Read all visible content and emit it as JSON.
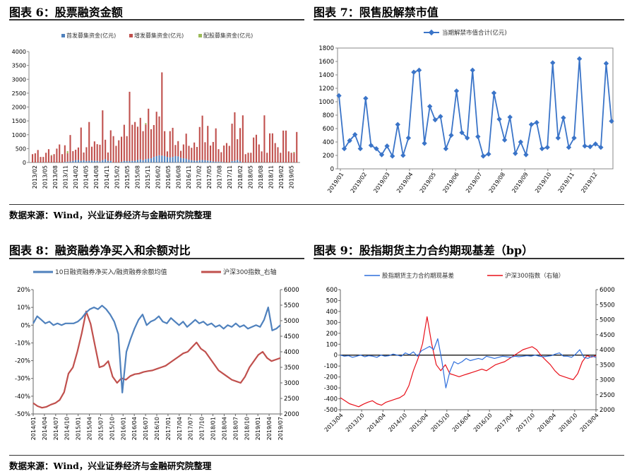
{
  "titles": {
    "fig6": "图表 6：股票融资金额",
    "fig7": "图表 7：限售股解禁市值",
    "fig8": "图表 8：融资融券净买入和余额对比",
    "fig9": "图表 9：股指期货主力合约期现基差（bp）"
  },
  "sources": {
    "top": "数据来源：Wind，兴业证券经济与金融研究院整理",
    "bottom": "数据来源：Wind，兴业证券经济与金融研究院整理"
  },
  "colors": {
    "blue": "#4f81bd",
    "red": "#c0504d",
    "green": "#9bbb59",
    "marker": "#3a74c8",
    "blue9": "#2f6fdc",
    "red9": "#e8101a"
  },
  "chart_data": [
    {
      "id": "fig6",
      "type": "bar",
      "stacked": true,
      "legend_position": "top",
      "ylim": [
        0,
        4000
      ],
      "yticks": [
        0,
        500,
        1000,
        1500,
        2000,
        2500,
        3000,
        3500,
        4000
      ],
      "tick_labels": [
        "2013/02",
        "2013/05",
        "2013/08",
        "2013/11",
        "2014/02",
        "2014/05",
        "2014/08",
        "2014/11",
        "2015/02",
        "2015/05",
        "2015/08",
        "2015/11",
        "2016/02",
        "2016/05",
        "2016/08",
        "2016/11",
        "2017/02",
        "2017/05",
        "2017/08",
        "2017/11",
        "2018/02",
        "2018/05",
        "2018/08",
        "2018/11",
        "2019/02",
        "2019/05"
      ],
      "series": [
        {
          "name": "首发募集资金(亿元)",
          "values": [
            0,
            0,
            0,
            0,
            0,
            0,
            0,
            0,
            0,
            0,
            0,
            0,
            20,
            30,
            40,
            60,
            80,
            90,
            60,
            80,
            50,
            60,
            70,
            60,
            60,
            40,
            80,
            120,
            60,
            60,
            0,
            0,
            0,
            30,
            60,
            50,
            50,
            60,
            60,
            90,
            110,
            80,
            120,
            140,
            150,
            200,
            230,
            260,
            250,
            230,
            200,
            180,
            200,
            230,
            220,
            170,
            150,
            140,
            100,
            80,
            70,
            60,
            80,
            90,
            80,
            70,
            60,
            40,
            30,
            30,
            20,
            10,
            0,
            0,
            50,
            60,
            90,
            40
          ]
        },
        {
          "name": "增发募集资金(亿元)",
          "values": [
            300,
            330,
            450,
            200,
            200,
            350,
            480,
            250,
            300,
            500,
            650,
            300,
            600,
            300,
            950,
            350,
            380,
            450,
            1200,
            280,
            500,
            1400,
            500,
            700,
            600,
            600,
            1800,
            700,
            300,
            1100,
            950,
            600,
            800,
            900,
            1300,
            900,
            2500,
            1300,
            1400,
            1200,
            1500,
            1050,
            1250,
            1800,
            1050,
            1150,
            1600,
            1400,
            3000,
            900,
            200,
            950,
            1050,
            400,
            550,
            250,
            500,
            900,
            500,
            450,
            650,
            500,
            1200,
            1600,
            650,
            1250,
            550,
            700,
            1200,
            450,
            350,
            600,
            700,
            600,
            1350,
            1750,
            750,
            1200,
            1700,
            300,
            350,
            350,
            900,
            1000,
            650,
            400,
            1700,
            350,
            1050,
            1050,
            700,
            550,
            350,
            1150,
            1150,
            400,
            350,
            350,
            1100
          ]
        },
        {
          "name": "配股募集资金(亿元)",
          "values": [
            0,
            0,
            0,
            0,
            0,
            0,
            0,
            20,
            0,
            0,
            0,
            0,
            0,
            80,
            0,
            0,
            0,
            0,
            0,
            0,
            0,
            0,
            0,
            0,
            0,
            0,
            0,
            0,
            0,
            0,
            0,
            0,
            0,
            0,
            0,
            0,
            0,
            0,
            0,
            0,
            0,
            0,
            50,
            0,
            0,
            0,
            0,
            0,
            0,
            0,
            0,
            0,
            0,
            0,
            0,
            0,
            0,
            0,
            0,
            0,
            0,
            0,
            0,
            0,
            0,
            0,
            0,
            0,
            0,
            0,
            0,
            0,
            0,
            0,
            0,
            0,
            0,
            0,
            0,
            0,
            0,
            0,
            0,
            0,
            0,
            0,
            0,
            0,
            0,
            0,
            0,
            0,
            0,
            0,
            0,
            0,
            0,
            30,
            0
          ]
        }
      ]
    },
    {
      "id": "fig7",
      "type": "line",
      "legend_position": "top",
      "ylim": [
        0,
        1800
      ],
      "yticks": [
        0,
        200,
        400,
        600,
        800,
        1000,
        1200,
        1400,
        1600,
        1800
      ],
      "tick_labels": [
        "2019/01",
        "2019/02",
        "2019/03",
        "2019/04",
        "2019/05",
        "2019/06",
        "2019/07",
        "2019/08",
        "2019/09",
        "2019/10",
        "2019/11",
        "2019/12"
      ],
      "series": [
        {
          "name": "当期解禁市值合计(亿元)",
          "values": [
            1090,
            300,
            420,
            510,
            300,
            1050,
            350,
            300,
            210,
            340,
            190,
            660,
            200,
            460,
            1440,
            1470,
            380,
            930,
            730,
            780,
            300,
            500,
            1160,
            540,
            460,
            1470,
            480,
            190,
            220,
            1130,
            740,
            430,
            770,
            230,
            400,
            210,
            660,
            690,
            300,
            320,
            1580,
            460,
            760,
            320,
            460,
            1640,
            340,
            330,
            370,
            320,
            1570,
            710
          ]
        }
      ]
    },
    {
      "id": "fig8",
      "type": "line",
      "legend_position": "top",
      "ylim_left": [
        -0.5,
        0.2
      ],
      "yticks_left": [
        "20%",
        "10%",
        "0%",
        "-10%",
        "-20%",
        "-30%",
        "-40%",
        "-50%"
      ],
      "ylim_right": [
        2000,
        6000
      ],
      "yticks_right": [
        6000,
        5500,
        5000,
        4500,
        4000,
        3500,
        3000,
        2500,
        2000
      ],
      "tick_labels": [
        "2014/01",
        "2014/04",
        "2014/07",
        "2014/10",
        "2015/01",
        "2015/04",
        "2015/07",
        "2015/10",
        "2016/01",
        "2016/04",
        "2016/07",
        "2016/10",
        "2017/01",
        "2017/04",
        "2017/07",
        "2017/10",
        "2018/01",
        "2018/04",
        "2018/07",
        "2018/10",
        "2019/01",
        "2019/04",
        "2019/07"
      ],
      "series": [
        {
          "name": "10日融资融券净买入/融资融券余额均值",
          "axis": "left",
          "values": [
            0.01,
            0.05,
            0.03,
            0.01,
            0.02,
            0.0,
            0.01,
            0.0,
            0.01,
            0.01,
            0.01,
            0.02,
            0.04,
            0.07,
            0.09,
            0.1,
            0.09,
            0.11,
            0.09,
            0.06,
            0.02,
            -0.05,
            -0.38,
            -0.15,
            -0.08,
            -0.02,
            0.03,
            0.06,
            0.0,
            0.02,
            0.03,
            0.05,
            0.02,
            0.01,
            0.04,
            0.02,
            0.0,
            0.02,
            -0.01,
            0.01,
            0.03,
            0.01,
            0.02,
            0.0,
            0.01,
            -0.01,
            0.0,
            -0.02,
            0.0,
            -0.01,
            0.01,
            -0.01,
            0.0,
            -0.02,
            -0.01,
            0.0,
            -0.01,
            0.03,
            0.1,
            -0.03,
            -0.02,
            0.0
          ]
        },
        {
          "name": "沪深300指数_右轴",
          "axis": "right",
          "values": [
            2350,
            2250,
            2200,
            2230,
            2300,
            2350,
            2450,
            2700,
            3300,
            3500,
            4000,
            4600,
            5300,
            4900,
            4200,
            3500,
            3550,
            3700,
            3200,
            3000,
            3150,
            3100,
            3220,
            3280,
            3300,
            3350,
            3380,
            3400,
            3450,
            3500,
            3550,
            3650,
            3750,
            3850,
            3950,
            4000,
            4150,
            4300,
            4100,
            4000,
            3800,
            3600,
            3400,
            3300,
            3200,
            3100,
            3050,
            3000,
            3200,
            3500,
            3700,
            3900,
            4000,
            3800,
            3700,
            3750,
            3800
          ]
        }
      ]
    },
    {
      "id": "fig9",
      "type": "line",
      "legend_position": "top",
      "ylim_left": [
        -500,
        600
      ],
      "yticks_left": [
        600,
        500,
        400,
        300,
        200,
        100,
        0,
        -100,
        -200,
        -300,
        -400,
        -500
      ],
      "ylim_right": [
        2000,
        6000
      ],
      "yticks_right": [
        6000,
        5500,
        5000,
        4500,
        4000,
        3500,
        3000,
        2500,
        2000
      ],
      "tick_labels": [
        "2013/04",
        "2013/10",
        "2014/04",
        "2014/10",
        "2015/04",
        "2015/10",
        "2016/04",
        "2016/10",
        "2017/04",
        "2017/10",
        "2018/04",
        "2018/10",
        "2019/04"
      ],
      "series": [
        {
          "name": "股指期货主力合约期现基差",
          "axis": "left",
          "values": [
            0,
            -10,
            -5,
            -20,
            -10,
            0,
            -15,
            -5,
            -10,
            -20,
            0,
            -10,
            -5,
            10,
            0,
            -10,
            20,
            5,
            30,
            -10,
            40,
            60,
            80,
            50,
            150,
            -50,
            -300,
            -150,
            -60,
            -80,
            -60,
            -30,
            -50,
            -40,
            -30,
            -40,
            -10,
            -20,
            -30,
            -20,
            -10,
            -15,
            -20,
            -10,
            -15,
            -10,
            -5,
            -10,
            0,
            -10,
            -15,
            -10,
            -5,
            10,
            20,
            -10,
            -10,
            -20,
            10,
            50,
            -20,
            -30,
            -10,
            -20
          ]
        },
        {
          "name": "沪深300指数（右轴）",
          "axis": "right",
          "values": [
            2400,
            2300,
            2200,
            2150,
            2100,
            2180,
            2250,
            2300,
            2200,
            2150,
            2250,
            2300,
            2350,
            2400,
            2500,
            2800,
            3300,
            3700,
            4200,
            5100,
            4200,
            3500,
            3300,
            3500,
            3200,
            3150,
            3100,
            3150,
            3200,
            3250,
            3300,
            3350,
            3300,
            3400,
            3500,
            3550,
            3600,
            3700,
            3800,
            3900,
            4000,
            4050,
            4100,
            4000,
            3800,
            3650,
            3500,
            3300,
            3150,
            3100,
            3050,
            3000,
            3200,
            3600,
            3800,
            3750,
            3800
          ]
        }
      ]
    }
  ]
}
